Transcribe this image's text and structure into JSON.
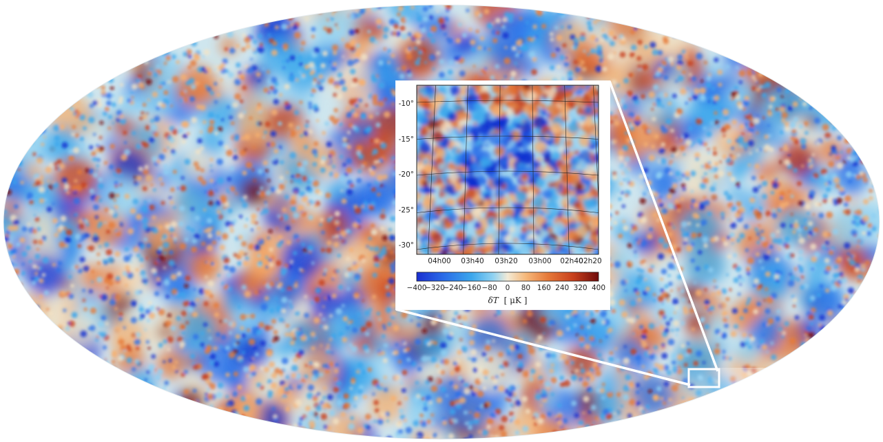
{
  "map": {
    "projection": "Mollweide all-sky",
    "palette": [
      "#1030d0",
      "#2a70e8",
      "#3ba8ec",
      "#8ed0f2",
      "#f3e3c6",
      "#f6b070",
      "#e67a3a",
      "#c8401c",
      "#7a0e0e"
    ]
  },
  "inset": {
    "y_ticks": [
      "-10°",
      "-15°",
      "-20°",
      "-25°",
      "-30°"
    ],
    "x_ticks": [
      "04h00",
      "03h40",
      "03h20",
      "03h00",
      "02h40",
      "02h20"
    ],
    "colorbar": {
      "ticks": [
        "−400",
        "−320",
        "−240",
        "−160",
        "−80",
        "0",
        "80",
        "160",
        "240",
        "320",
        "400"
      ],
      "label_main": "δT",
      "label_unit": "[ μK ]",
      "min": -400,
      "max": 400
    }
  }
}
